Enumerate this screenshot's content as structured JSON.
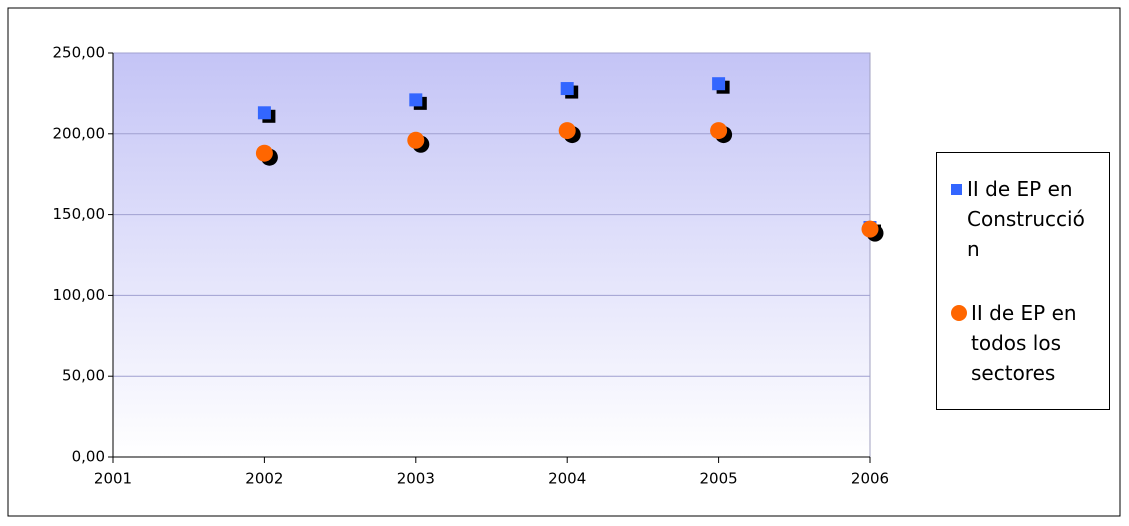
{
  "chart_data": {
    "type": "scatter",
    "xlim": [
      2001,
      2006
    ],
    "xticks": [
      2001,
      2002,
      2003,
      2004,
      2005,
      2006
    ],
    "ylim": [
      0,
      250
    ],
    "yticks": [
      {
        "value": 0,
        "label": "0,00"
      },
      {
        "value": 50,
        "label": "50,00"
      },
      {
        "value": 100,
        "label": "100,00"
      },
      {
        "value": 150,
        "label": "150,00"
      },
      {
        "value": 200,
        "label": "200,00"
      },
      {
        "value": 250,
        "label": "250,00"
      }
    ],
    "grid": true,
    "legend": "right",
    "x": [
      2002,
      2003,
      2004,
      2005,
      2006
    ],
    "series": [
      {
        "name": "II de EP en Construcción",
        "color": "#3366ff",
        "marker": "square",
        "values": [
          213,
          221,
          228,
          231,
          142
        ]
      },
      {
        "name": "II de EP en todos los sectores",
        "color": "#ff6600",
        "marker": "circle",
        "values": [
          188,
          196,
          202,
          202,
          141
        ]
      }
    ]
  }
}
